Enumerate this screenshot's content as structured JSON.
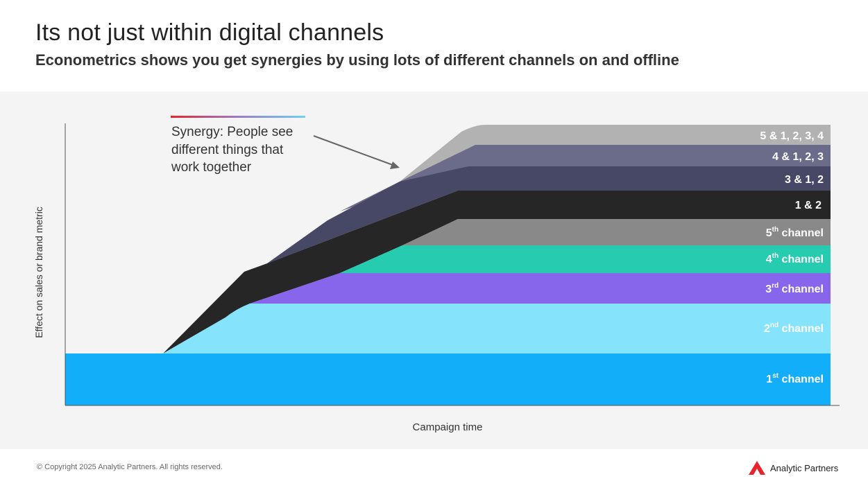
{
  "header": {
    "title": "Its not just within digital channels",
    "subtitle": "Econometrics shows you get synergies by using lots of different channels on and offline"
  },
  "chart_data": {
    "type": "area",
    "ylabel": "Effect on sales or brand metric",
    "xlabel": "Campaign time",
    "annotation": "Synergy: People see different things that work together",
    "layers": [
      {
        "label": "1",
        "sup": "st",
        "suffix": " channel",
        "color": "#13aef9"
      },
      {
        "label": "2",
        "sup": "nd",
        "suffix": " channel",
        "color": "#85e3fc"
      },
      {
        "label": "3",
        "sup": "rd",
        "suffix": " channel",
        "color": "#8866ec"
      },
      {
        "label": "4",
        "sup": "th",
        "suffix": " channel",
        "color": "#27cbb0"
      },
      {
        "label": "5",
        "sup": "th",
        "suffix": " channel",
        "color": "#898989"
      },
      {
        "label": "1 & 2",
        "sup": "",
        "suffix": "",
        "color": "#262626"
      },
      {
        "label": "3 & 1, 2",
        "sup": "",
        "suffix": "",
        "color": "#474866"
      },
      {
        "label": "4 & 1, 2, 3",
        "sup": "",
        "suffix": "",
        "color": "#6b6c89"
      },
      {
        "label": "5 & 1, 2, 3, 4",
        "sup": "",
        "suffix": "",
        "color": "#b2b2b2"
      }
    ]
  },
  "footer": {
    "copyright": "© Copyright 2025 Analytic Partners. All rights reserved.",
    "brand": "Analytic Partners",
    "brand_color": "#e8232a"
  }
}
